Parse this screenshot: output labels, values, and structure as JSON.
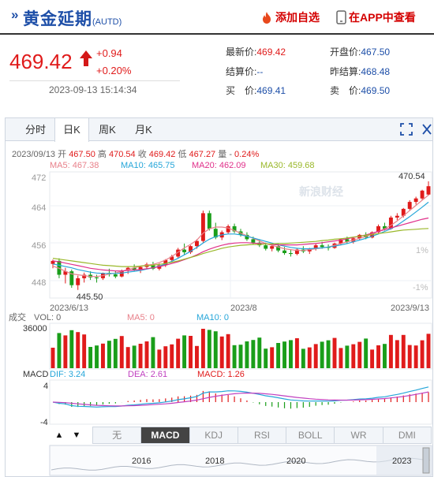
{
  "header": {
    "title": "黄金延期",
    "code": "(AUTD)",
    "add_label": "添加自选",
    "app_label": "在APP中查看"
  },
  "quote": {
    "price": "469.42",
    "change": "+0.94",
    "change_pct": "+0.20%",
    "timestamp": "2023-09-13 15:14:34",
    "latest_label": "最新价:",
    "latest": "469.42",
    "open_label": "开盘价:",
    "open": "467.50",
    "settle_label": "结算价:",
    "settle": "--",
    "prev_settle_label": "昨结算:",
    "prev_settle": "468.48",
    "bid_label": "买　价:",
    "bid": "469.41",
    "ask_label": "卖　价:",
    "ask": "469.50"
  },
  "tabs": [
    "分时",
    "日K",
    "周K",
    "月K"
  ],
  "active_tab": "日K",
  "ohlc": {
    "date": "2023/09/13",
    "open_label": "开",
    "open": "467.50",
    "high_label": "高",
    "high": "470.54",
    "close_label": "收",
    "close": "469.42",
    "low_label": "低",
    "low": "467.27",
    "vol_label": "量",
    "vol": "-",
    "pct": "0.24%"
  },
  "ma_legend": {
    "ma5": "MA5: 467.38",
    "ma10": "MA10: 465.75",
    "ma20": "MA20: 462.09",
    "ma30": "MA30: 459.68"
  },
  "chart_labels": {
    "y_ticks": [
      "472",
      "464",
      "456",
      "448"
    ],
    "pct_ticks": [
      "1%",
      "-1%"
    ],
    "x_ticks": [
      "2023/6/13",
      "2023/8",
      "2023/9/13"
    ],
    "max_label": "470.54",
    "min_label": "445.50",
    "watermark": "新浪财经"
  },
  "volume": {
    "title": "成交",
    "vol_label": "VOL: 0",
    "ma5_label": "MA5: 0",
    "ma10_label": "MA10: 0",
    "y_top": "36000"
  },
  "macd": {
    "title": "MACD",
    "dif": "DIF: 3.24",
    "dea": "DEA: 2.61",
    "macd": "MACD: 1.26",
    "y_top": "4",
    "y_bottom": "-4"
  },
  "indicator_tabs": [
    "无",
    "MACD",
    "KDJ",
    "RSI",
    "BOLL",
    "WR",
    "DMI"
  ],
  "active_indicator": "MACD",
  "nav": {
    "up": "▲",
    "down": "▼"
  },
  "range_years": [
    "2016",
    "2018",
    "2020",
    "2023"
  ],
  "colors": {
    "up": "#e01b1b",
    "down": "#1a9e1a",
    "ma5": "#e8808a",
    "ma10": "#26a6d9",
    "ma20": "#e0308a",
    "ma30": "#9ab82a",
    "brand": "#1e4fa8"
  },
  "chart_data": {
    "type": "candlestick",
    "x_range": [
      "2023/6/13",
      "2023/9/13"
    ],
    "ylim": [
      444,
      472
    ],
    "high_marked": 470.54,
    "low_marked": 445.5,
    "candles": [
      [
        451.5,
        452.5,
        450.5,
        452.2
      ],
      [
        452.2,
        452.8,
        448.2,
        449.0
      ],
      [
        449.0,
        450.6,
        447.0,
        449.8
      ],
      [
        449.8,
        450.2,
        446.0,
        446.6
      ],
      [
        446.6,
        448.8,
        445.5,
        448.2
      ],
      [
        448.2,
        449.5,
        447.2,
        449.0
      ],
      [
        449.0,
        449.8,
        447.8,
        448.4
      ],
      [
        448.4,
        449.0,
        447.2,
        448.2
      ],
      [
        448.2,
        449.5,
        447.8,
        449.4
      ],
      [
        449.4,
        450.4,
        448.6,
        449.1
      ],
      [
        449.1,
        449.9,
        448.2,
        448.6
      ],
      [
        448.6,
        450.2,
        448.4,
        450.0
      ],
      [
        450.0,
        451.0,
        449.2,
        450.6
      ],
      [
        450.6,
        451.4,
        449.8,
        450.2
      ],
      [
        450.2,
        450.9,
        449.4,
        450.8
      ],
      [
        450.8,
        451.8,
        450.3,
        451.4
      ],
      [
        451.4,
        452.0,
        450.1,
        450.4
      ],
      [
        450.4,
        451.6,
        450.0,
        451.2
      ],
      [
        451.2,
        452.6,
        450.8,
        452.4
      ],
      [
        452.4,
        453.6,
        451.9,
        453.2
      ],
      [
        453.2,
        455.2,
        452.8,
        454.8
      ],
      [
        454.8,
        456.2,
        453.6,
        454.2
      ],
      [
        454.2,
        455.8,
        453.8,
        455.6
      ],
      [
        455.6,
        457.2,
        455.0,
        456.8
      ],
      [
        456.8,
        463.8,
        456.4,
        463.2
      ],
      [
        463.2,
        463.8,
        459.2,
        459.6
      ],
      [
        459.6,
        461.0,
        457.2,
        457.6
      ],
      [
        457.6,
        459.2,
        457.0,
        458.8
      ],
      [
        458.8,
        460.6,
        458.4,
        460.2
      ],
      [
        460.2,
        460.8,
        458.6,
        459.0
      ],
      [
        459.0,
        459.6,
        457.8,
        458.2
      ],
      [
        458.2,
        458.8,
        456.8,
        457.2
      ],
      [
        457.2,
        457.8,
        456.0,
        456.4
      ],
      [
        456.4,
        457.2,
        455.4,
        455.8
      ],
      [
        455.8,
        456.4,
        454.6,
        455.0
      ],
      [
        455.0,
        456.0,
        454.4,
        455.6
      ],
      [
        455.6,
        456.2,
        454.2,
        454.6
      ],
      [
        454.6,
        455.4,
        453.6,
        454.0
      ],
      [
        454.0,
        454.8,
        453.2,
        453.8
      ],
      [
        453.8,
        455.0,
        453.5,
        454.8
      ],
      [
        454.8,
        455.6,
        454.0,
        454.4
      ],
      [
        454.4,
        455.2,
        453.8,
        455.0
      ],
      [
        455.0,
        456.2,
        454.6,
        455.8
      ],
      [
        455.8,
        456.6,
        455.0,
        455.4
      ],
      [
        455.4,
        456.0,
        454.6,
        455.2
      ],
      [
        455.2,
        456.4,
        455.0,
        456.2
      ],
      [
        456.2,
        457.4,
        455.8,
        457.2
      ],
      [
        457.2,
        457.8,
        456.2,
        456.6
      ],
      [
        456.6,
        457.6,
        456.2,
        457.4
      ],
      [
        457.4,
        458.4,
        457.0,
        458.2
      ],
      [
        458.2,
        458.8,
        457.2,
        457.6
      ],
      [
        457.6,
        459.0,
        457.4,
        458.8
      ],
      [
        458.8,
        460.6,
        458.6,
        460.2
      ],
      [
        460.2,
        461.0,
        459.2,
        459.6
      ],
      [
        459.6,
        462.6,
        459.4,
        462.2
      ],
      [
        462.2,
        463.2,
        461.6,
        462.6
      ],
      [
        462.6,
        464.4,
        462.2,
        464.2
      ],
      [
        464.2,
        466.2,
        463.8,
        465.8
      ],
      [
        465.8,
        467.0,
        465.2,
        466.6
      ],
      [
        466.6,
        468.6,
        466.2,
        468.4
      ],
      [
        467.5,
        470.54,
        467.27,
        469.42
      ]
    ],
    "ma5": [
      451,
      450.5,
      449.8,
      449.2,
      449,
      448.8,
      448.6,
      448.6,
      448.8,
      449.2,
      449.4,
      449.8,
      450.2,
      450.6,
      451,
      451.2,
      451.4,
      451.8,
      452.4,
      453.2,
      454.2,
      455.2,
      456,
      457,
      458.6,
      459.6,
      460,
      460,
      459.8,
      459.2,
      458.6,
      458,
      457.4,
      456.8,
      456.2,
      455.8,
      455.4,
      455,
      454.8,
      454.6,
      454.6,
      454.8,
      455,
      455.2,
      455.4,
      455.8,
      456.2,
      456.6,
      457,
      457.4,
      457.8,
      458.4,
      459,
      459.6,
      460.4,
      461.4,
      462.6,
      463.8,
      465,
      466.2,
      467.38
    ],
    "ma10": [
      451.5,
      451.2,
      450.9,
      450.6,
      450.2,
      449.9,
      449.6,
      449.4,
      449.3,
      449.3,
      449.3,
      449.4,
      449.6,
      449.8,
      450,
      450.3,
      450.6,
      451,
      451.5,
      452.1,
      452.8,
      453.6,
      454.4,
      455.3,
      456.3,
      457.2,
      457.8,
      458.2,
      458.4,
      458.4,
      458.2,
      457.9,
      457.5,
      457.1,
      456.7,
      456.3,
      455.9,
      455.6,
      455.3,
      455.1,
      455,
      455,
      455.1,
      455.2,
      455.4,
      455.6,
      455.9,
      456.2,
      456.6,
      457,
      457.4,
      457.9,
      458.4,
      459,
      459.6,
      460.4,
      461.4,
      462.4,
      463.5,
      464.6,
      465.75
    ],
    "ma20": [
      452.2,
      452,
      451.7,
      451.4,
      451.1,
      450.8,
      450.5,
      450.3,
      450.1,
      450,
      449.9,
      449.9,
      450,
      450.1,
      450.2,
      450.4,
      450.6,
      450.9,
      451.2,
      451.6,
      452,
      452.5,
      453,
      453.6,
      454.3,
      454.9,
      455.4,
      455.8,
      456.1,
      456.3,
      456.4,
      456.4,
      456.3,
      456.2,
      456.1,
      456,
      455.9,
      455.9,
      455.9,
      455.9,
      456,
      456.1,
      456.2,
      456.4,
      456.6,
      456.8,
      457,
      457.3,
      457.6,
      457.9,
      458.2,
      458.6,
      459,
      459.4,
      459.8,
      460.2,
      460.6,
      461,
      461.4,
      461.8,
      462.09
    ],
    "ma30": [
      452.8,
      452.6,
      452.4,
      452.2,
      452,
      451.8,
      451.6,
      451.4,
      451.2,
      451.1,
      451,
      450.9,
      450.9,
      450.9,
      451,
      451.1,
      451.2,
      451.4,
      451.6,
      451.9,
      452.2,
      452.6,
      453,
      453.4,
      453.9,
      454.3,
      454.7,
      455.1,
      455.4,
      455.6,
      455.8,
      455.9,
      456,
      456,
      456.1,
      456.1,
      456.2,
      456.2,
      456.3,
      456.4,
      456.5,
      456.6,
      456.7,
      456.9,
      457,
      457.2,
      457.3,
      457.5,
      457.7,
      457.9,
      458.1,
      458.3,
      458.5,
      458.7,
      458.9,
      459.1,
      459.3,
      459.4,
      459.5,
      459.6,
      459.68
    ]
  }
}
